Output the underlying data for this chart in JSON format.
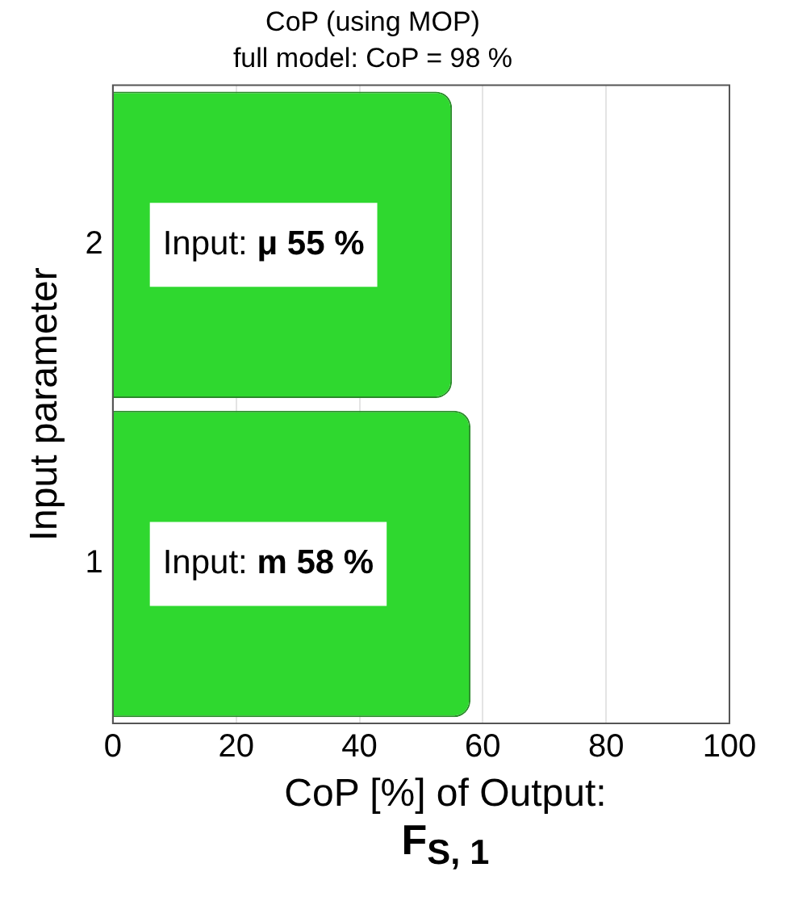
{
  "chart_data": {
    "type": "bar",
    "orientation": "horizontal",
    "title": "CoP (using MOP)",
    "subtitle": "full model: CoP = 98 %",
    "ylabel": "Input parameter",
    "xlabel": "CoP [%] of Output: F$_{S, 1}$",
    "categories": [
      "2",
      "1"
    ],
    "values": [
      55,
      58
    ],
    "color": "#2fd82f",
    "value_labels": [
      "Input: μ 55 %",
      "Input: m 58 %"
    ],
    "xlim": [
      0,
      100
    ],
    "xticks": [
      0,
      20,
      40,
      60,
      80,
      100
    ],
    "grid": "x",
    "legend": false
  }
}
